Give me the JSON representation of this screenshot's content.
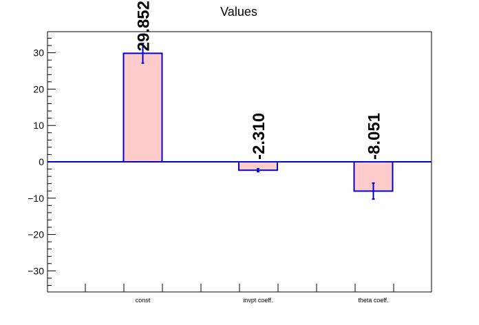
{
  "chart_data": {
    "type": "bar",
    "title": "Values",
    "categories": [
      "const",
      "invpt coeff.",
      "theta coeff."
    ],
    "values": [
      29.852,
      -2.31,
      -8.051
    ],
    "value_labels": [
      "29.852",
      "-2.310",
      "-8.051"
    ],
    "errors": [
      2.7,
      0.4,
      2.2
    ],
    "ylim": [
      -35.8,
      35.8
    ],
    "yticks": [
      -30,
      -20,
      -10,
      0,
      10,
      20,
      30
    ],
    "ytick_labels": [
      "−30",
      "−20",
      "−10",
      "0",
      "10",
      "20",
      "30"
    ],
    "xlabel": "",
    "ylabel": "",
    "grid": false,
    "legend": "none",
    "colors": {
      "bar_fill": "#ffcccc",
      "bar_stroke": "#0000cc",
      "axis": "#000000",
      "text": "#000000"
    }
  }
}
